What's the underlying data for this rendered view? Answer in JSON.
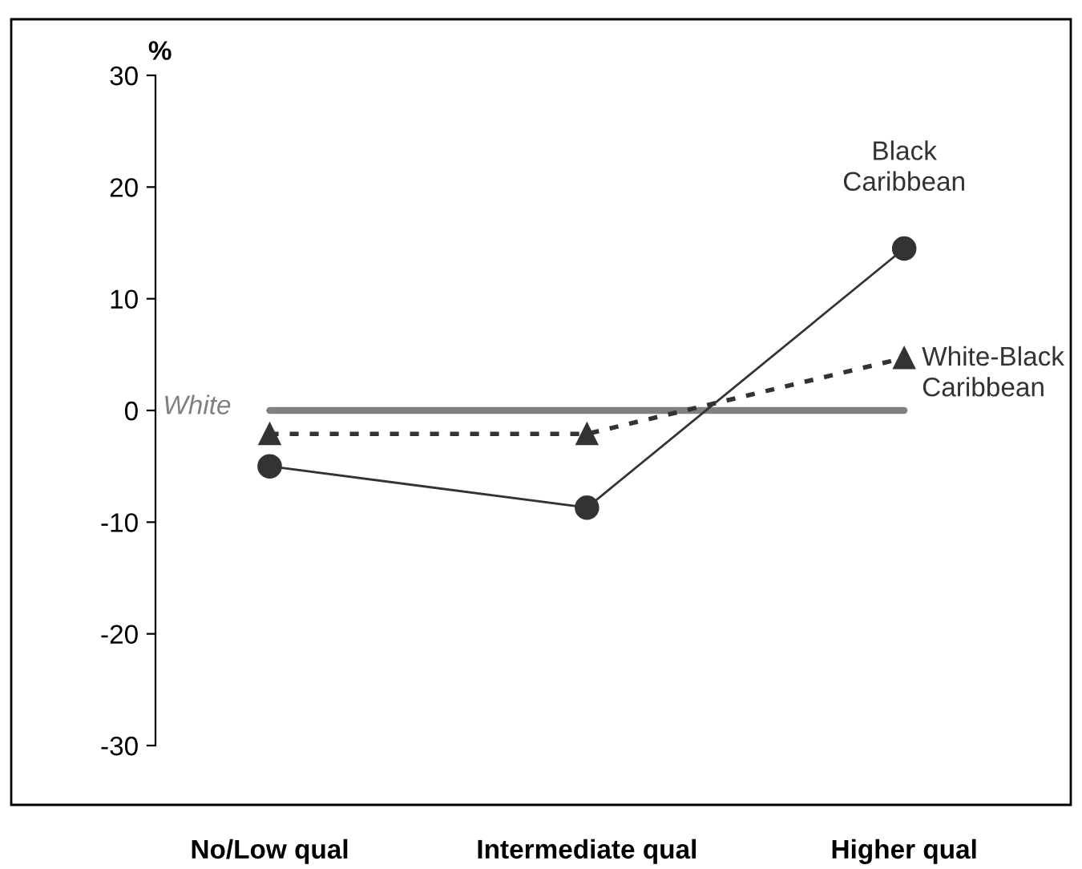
{
  "chart_data": {
    "type": "line",
    "ylabel": "%",
    "categories": [
      "No/Low qual",
      "Intermediate qual",
      "Higher qual"
    ],
    "series": [
      {
        "name": "White",
        "color": "#808080",
        "values": [
          0,
          0,
          0
        ],
        "marker": "none",
        "line_style": "solid"
      },
      {
        "name": "White-Black Caribbean",
        "color": "#333333",
        "values": [
          -2.1,
          -2.1,
          4.7
        ],
        "marker": "triangle",
        "line_style": "dotted"
      },
      {
        "name": "Black Caribbean",
        "color": "#333333",
        "values": [
          -5.0,
          -8.7,
          14.5
        ],
        "marker": "circle",
        "line_style": "solid"
      }
    ],
    "ylim": [
      -30,
      30
    ],
    "yticks": [
      -30,
      -20,
      -10,
      0,
      10,
      20,
      30
    ],
    "grid": false,
    "legend": false
  }
}
